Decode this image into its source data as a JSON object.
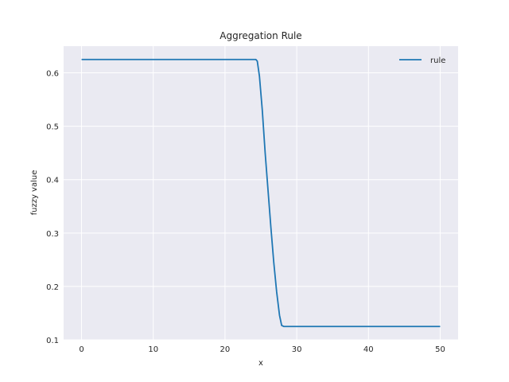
{
  "chart_data": {
    "type": "line",
    "title": "Aggregation Rule",
    "xlabel": "x",
    "ylabel": "fuzzy value",
    "xlim": [
      -2.5,
      52.5
    ],
    "ylim": [
      0.1,
      0.65
    ],
    "xticks": [
      0,
      10,
      20,
      30,
      40,
      50
    ],
    "yticks": [
      0.1,
      0.2,
      0.3,
      0.4,
      0.5,
      0.6
    ],
    "grid": true,
    "legend_position": "top-right",
    "colors": {
      "plot_bg": "#eaeaf2",
      "grid": "#ffffff",
      "line": "#1f77b4"
    },
    "series": [
      {
        "name": "rule",
        "x": [
          0,
          24.3,
          24.5,
          24.8,
          25.2,
          25.6,
          26.0,
          26.4,
          26.8,
          27.2,
          27.6,
          27.9,
          28.2,
          50
        ],
        "y": [
          0.625,
          0.625,
          0.622,
          0.594,
          0.53,
          0.45,
          0.38,
          0.31,
          0.245,
          0.19,
          0.146,
          0.127,
          0.125,
          0.125
        ]
      }
    ]
  }
}
